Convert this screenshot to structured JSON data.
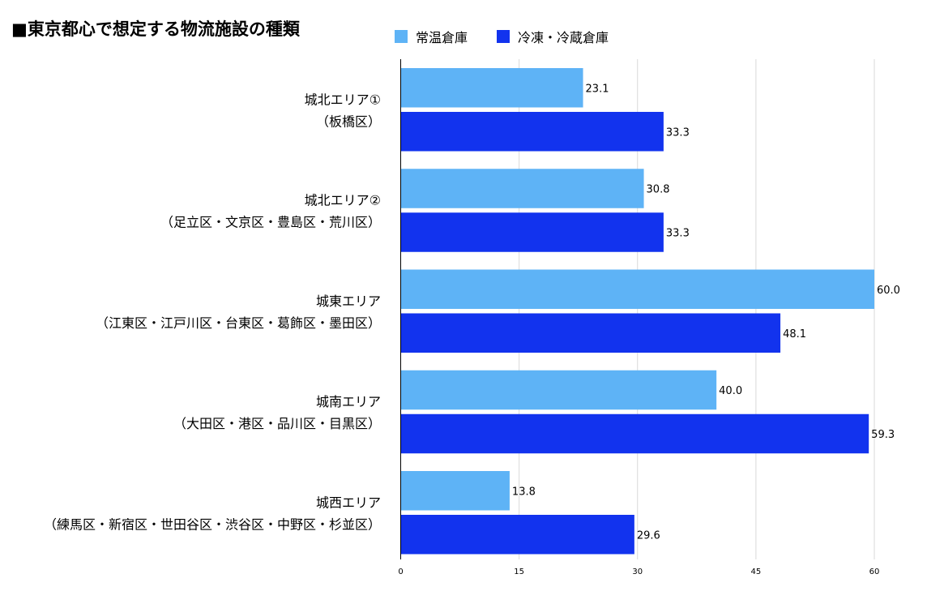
{
  "title": "■東京都心で想定する物流施設の種類",
  "colors": {
    "normal": "#5eb3f6",
    "cold": "#1233ee",
    "grid": "#d9d9d9",
    "axis": "#000000"
  },
  "chart_data": {
    "type": "bar",
    "orientation": "horizontal",
    "categories": [
      {
        "line1": "城北エリア①",
        "line2": "（板橋区）"
      },
      {
        "line1": "城北エリア②",
        "line2": "（足立区・文京区・豊島区・荒川区）"
      },
      {
        "line1": "城東エリア",
        "line2": "（江東区・江戸川区・台東区・葛飾区・墨田区）"
      },
      {
        "line1": "城南エリア",
        "line2": "（大田区・港区・品川区・目黒区）"
      },
      {
        "line1": "城西エリア",
        "line2": "（練馬区・新宿区・世田谷区・渋谷区・中野区・杉並区）"
      }
    ],
    "series": [
      {
        "name": "常温倉庫",
        "values": [
          23.1,
          30.8,
          60.0,
          40.0,
          13.8
        ],
        "labels": [
          "23.1",
          "30.8",
          "60.0",
          "40.0",
          "13.8"
        ]
      },
      {
        "name": "冷凍・冷蔵倉庫",
        "values": [
          33.3,
          33.3,
          48.1,
          59.3,
          29.6
        ],
        "labels": [
          "33.3",
          "33.3",
          "48.1",
          "59.3",
          "29.6"
        ]
      }
    ],
    "xlim": [
      0,
      60
    ],
    "xticks": [
      "0",
      "15",
      "30",
      "45",
      "60"
    ],
    "xtick_values": [
      0,
      15,
      30,
      45,
      60
    ],
    "grid": true,
    "legend": "top"
  }
}
